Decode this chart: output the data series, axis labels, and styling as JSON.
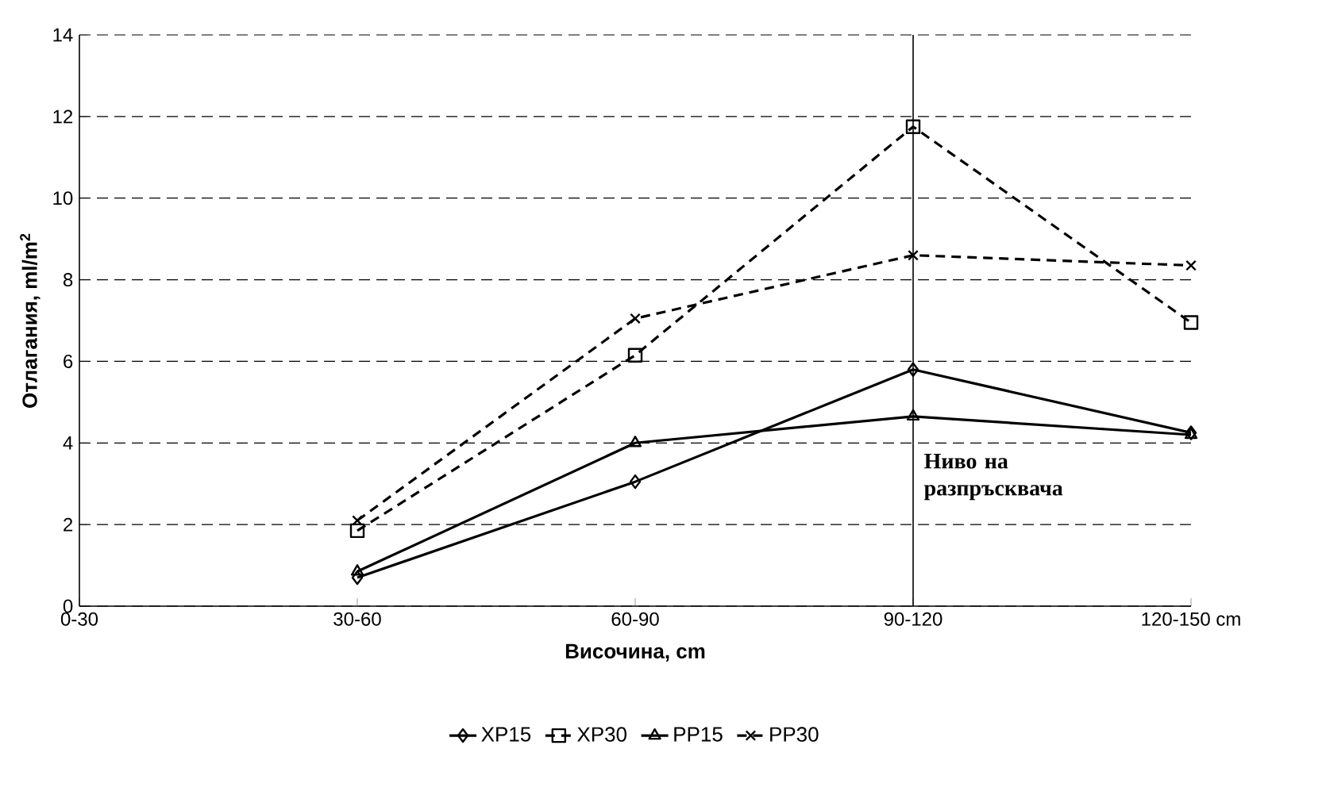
{
  "chart_data": {
    "type": "line",
    "xlabel": "Височина, cm",
    "ylabel": "Отлагания, ml/m$^{2}$",
    "categories": [
      "0-30",
      "30-60",
      "60-90",
      "90-120",
      "120-150 cm"
    ],
    "series": [
      {
        "name": "XP15",
        "color": "#000000",
        "marker": "diamond",
        "line_style": "solid",
        "values": [
          null,
          0.7,
          3.05,
          5.8,
          4.25
        ]
      },
      {
        "name": "XP30",
        "color": "#000000",
        "marker": "square",
        "line_style": "dashed",
        "values": [
          null,
          1.85,
          6.15,
          11.75,
          6.95
        ]
      },
      {
        "name": "PP15",
        "color": "#000000",
        "marker": "triangle",
        "line_style": "solid",
        "values": [
          null,
          0.85,
          4.0,
          4.65,
          4.2
        ]
      },
      {
        "name": "PP30",
        "color": "#000000",
        "marker": "cross",
        "line_style": "dashed",
        "values": [
          null,
          2.1,
          7.05,
          8.6,
          8.35
        ]
      }
    ],
    "ylim": [
      0,
      14
    ],
    "yticks": [
      0,
      2,
      4,
      6,
      8,
      10,
      12,
      14
    ],
    "grid": "y",
    "legend": "bottom",
    "ref_lines": [
      {
        "axis": "x",
        "value": "90-120",
        "label": "Ниво на разпръсквача"
      }
    ]
  }
}
